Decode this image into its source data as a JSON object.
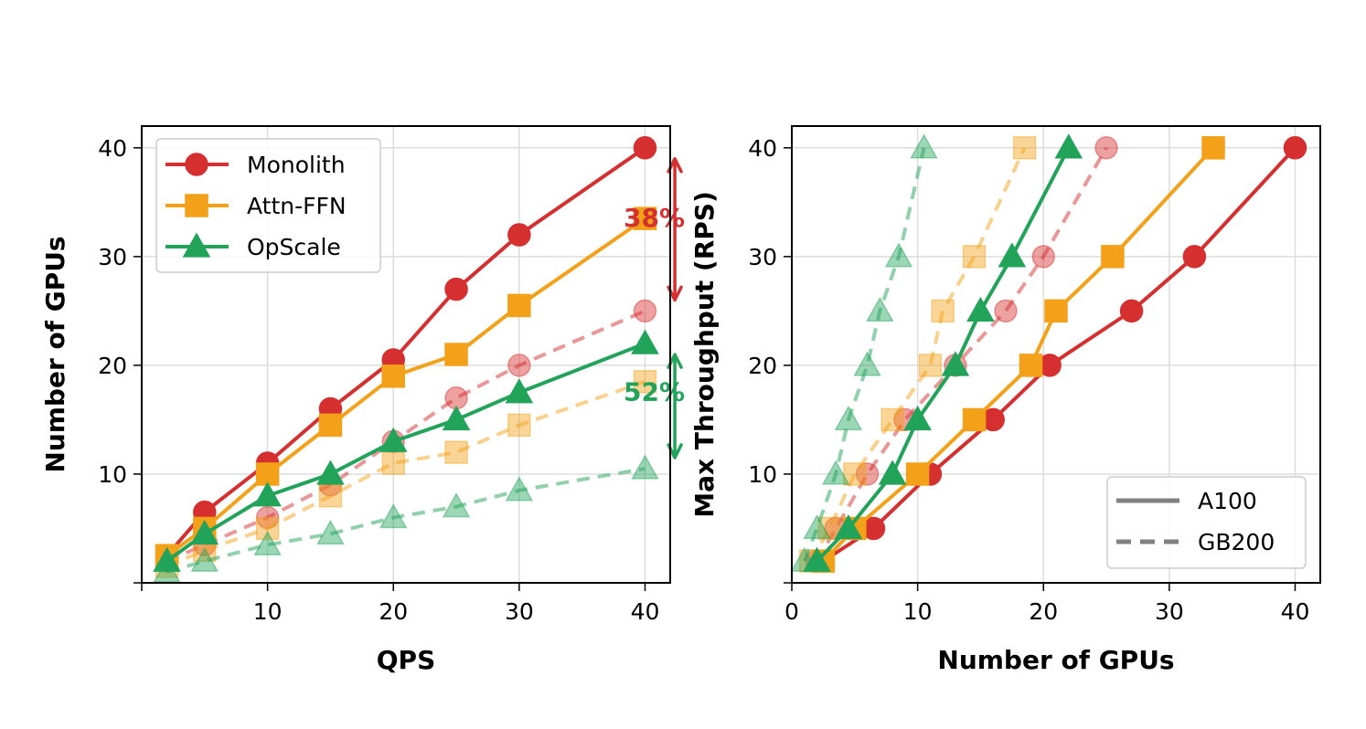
{
  "chart_data": [
    {
      "type": "line",
      "xlabel": "QPS",
      "ylabel": "Number of GPUs",
      "xlim": [
        0,
        42
      ],
      "ylim": [
        0,
        42
      ],
      "xticks": [
        10,
        20,
        30,
        40
      ],
      "yticks": [
        10,
        20,
        30,
        40
      ],
      "grid": true,
      "legend_position": "top-left",
      "legend": [
        {
          "name": "Monolith",
          "color": "#d62f2f",
          "marker": "circle"
        },
        {
          "name": "Attn-FFN",
          "color": "#f4a11a",
          "marker": "square"
        },
        {
          "name": "OpScale",
          "color": "#22a35a",
          "marker": "triangle"
        }
      ],
      "series": [
        {
          "name": "Monolith",
          "hardware": "A100",
          "color": "#d62f2f",
          "marker": "circle",
          "x": [
            2,
            5,
            10,
            15,
            20,
            25,
            30,
            40
          ],
          "y": [
            2.5,
            6.5,
            11,
            16,
            20.5,
            27,
            32,
            40
          ]
        },
        {
          "name": "Attn-FFN",
          "hardware": "A100",
          "color": "#f4a11a",
          "marker": "square",
          "x": [
            2,
            5,
            10,
            15,
            20,
            25,
            30,
            40
          ],
          "y": [
            2.5,
            5,
            10,
            14.5,
            19,
            21,
            25.5,
            33.5
          ]
        },
        {
          "name": "OpScale",
          "hardware": "A100",
          "color": "#22a35a",
          "marker": "triangle",
          "x": [
            2,
            5,
            10,
            15,
            20,
            25,
            30,
            40
          ],
          "y": [
            2,
            4.5,
            8,
            10,
            13,
            15,
            17.5,
            22
          ]
        },
        {
          "name": "Monolith",
          "hardware": "GB200",
          "color": "#d62f2f",
          "marker": "circle",
          "x": [
            2,
            5,
            10,
            15,
            20,
            25,
            30,
            40
          ],
          "y": [
            2,
            3.5,
            6,
            9,
            13,
            17,
            20,
            25
          ]
        },
        {
          "name": "Attn-FFN",
          "hardware": "GB200",
          "color": "#f4a11a",
          "marker": "square",
          "x": [
            2,
            5,
            10,
            15,
            20,
            25,
            30,
            40
          ],
          "y": [
            1.5,
            3,
            5,
            8,
            11,
            12,
            14.5,
            18.5
          ]
        },
        {
          "name": "OpScale",
          "hardware": "GB200",
          "color": "#22a35a",
          "marker": "triangle",
          "x": [
            2,
            5,
            10,
            15,
            20,
            25,
            30,
            40
          ],
          "y": [
            1,
            2,
            3.5,
            4.5,
            6,
            7,
            8.5,
            10.5
          ]
        }
      ],
      "annotations": [
        {
          "text": "38%",
          "color": "#d62f2f",
          "x": 37.5,
          "y_from": 40,
          "y_to": 25,
          "label_y": 33
        },
        {
          "text": "52%",
          "color": "#22a35a",
          "x": 37.5,
          "y_from": 22,
          "y_to": 10.5,
          "label_y": 17
        }
      ]
    },
    {
      "type": "line",
      "xlabel": "Number of GPUs",
      "ylabel": "Max Throughput (RPS)",
      "xlim": [
        0,
        42
      ],
      "ylim": [
        0,
        42
      ],
      "xticks": [
        0,
        10,
        20,
        30,
        40
      ],
      "yticks": [
        10,
        20,
        30,
        40
      ],
      "grid": true,
      "legend_position": "bottom-right",
      "legend": [
        {
          "name": "A100",
          "style": "solid",
          "color": "#808080"
        },
        {
          "name": "GB200",
          "style": "dashed",
          "color": "#808080"
        }
      ],
      "series": [
        {
          "name": "Monolith",
          "hardware": "A100",
          "color": "#d62f2f",
          "marker": "circle",
          "x": [
            2.5,
            6.5,
            11,
            16,
            20.5,
            27,
            32,
            40
          ],
          "y": [
            2,
            5,
            10,
            15,
            20,
            25,
            30,
            40
          ]
        },
        {
          "name": "Attn-FFN",
          "hardware": "A100",
          "color": "#f4a11a",
          "marker": "square",
          "x": [
            2.5,
            5,
            10,
            14.5,
            19,
            21,
            25.5,
            33.5
          ],
          "y": [
            2,
            5,
            10,
            15,
            20,
            25,
            30,
            40
          ]
        },
        {
          "name": "OpScale",
          "hardware": "A100",
          "color": "#22a35a",
          "marker": "triangle",
          "x": [
            2,
            4.5,
            8,
            10,
            13,
            15,
            17.5,
            22
          ],
          "y": [
            2,
            5,
            10,
            15,
            20,
            25,
            30,
            40
          ]
        },
        {
          "name": "Monolith",
          "hardware": "GB200",
          "color": "#d62f2f",
          "marker": "circle",
          "x": [
            2,
            3.5,
            6,
            9,
            13,
            17,
            20,
            25
          ],
          "y": [
            2,
            5,
            10,
            15,
            20,
            25,
            30,
            40
          ]
        },
        {
          "name": "Attn-FFN",
          "hardware": "GB200",
          "color": "#f4a11a",
          "marker": "square",
          "x": [
            1.5,
            3,
            5,
            8,
            11,
            12,
            14.5,
            18.5
          ],
          "y": [
            2,
            5,
            10,
            15,
            20,
            25,
            30,
            40
          ]
        },
        {
          "name": "OpScale",
          "hardware": "GB200",
          "color": "#22a35a",
          "marker": "triangle",
          "x": [
            1,
            2,
            3.5,
            4.5,
            6,
            7,
            8.5,
            10.5
          ],
          "y": [
            2,
            5,
            10,
            15,
            20,
            25,
            30,
            40
          ]
        }
      ]
    }
  ]
}
